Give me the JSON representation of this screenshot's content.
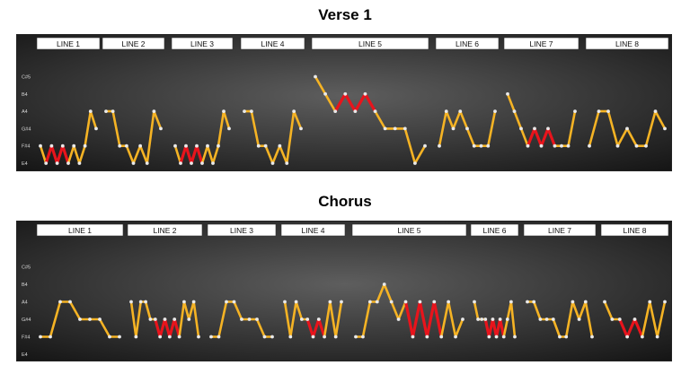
{
  "chart_data": [
    {
      "type": "line",
      "title": "Verse 1",
      "pitch_labels": [
        "E4",
        "F#4",
        "G#4",
        "A4",
        "B4",
        "C#5"
      ],
      "lines": [
        {
          "label": "LINE 1",
          "notes": [
            {
              "p": 1,
              "h": false
            },
            {
              "p": 0,
              "h": true
            },
            {
              "p": 1,
              "h": true
            },
            {
              "p": 0,
              "h": true
            },
            {
              "p": 1,
              "h": true
            },
            {
              "p": 0,
              "h": true
            },
            {
              "p": 1,
              "h": false
            },
            {
              "p": 0,
              "h": false
            },
            {
              "p": 1,
              "h": false
            },
            {
              "p": 3,
              "h": false
            },
            {
              "p": 2,
              "h": false
            }
          ]
        },
        {
          "label": "LINE 2",
          "notes": [
            {
              "p": 3,
              "h": false
            },
            {
              "p": 3,
              "h": false
            },
            {
              "p": 1,
              "h": false
            },
            {
              "p": 1,
              "h": false
            },
            {
              "p": 0,
              "h": false
            },
            {
              "p": 1,
              "h": false
            },
            {
              "p": 0,
              "h": false
            },
            {
              "p": 3,
              "h": false
            },
            {
              "p": 2,
              "h": false
            }
          ]
        },
        {
          "label": "LINE 3",
          "notes": [
            {
              "p": 1,
              "h": false
            },
            {
              "p": 0,
              "h": true
            },
            {
              "p": 1,
              "h": true
            },
            {
              "p": 0,
              "h": true
            },
            {
              "p": 1,
              "h": true
            },
            {
              "p": 0,
              "h": true
            },
            {
              "p": 1,
              "h": false
            },
            {
              "p": 0,
              "h": false
            },
            {
              "p": 1,
              "h": false
            },
            {
              "p": 3,
              "h": false
            },
            {
              "p": 2,
              "h": false
            }
          ]
        },
        {
          "label": "LINE 4",
          "notes": [
            {
              "p": 3,
              "h": false
            },
            {
              "p": 3,
              "h": false
            },
            {
              "p": 1,
              "h": false
            },
            {
              "p": 1,
              "h": false
            },
            {
              "p": 0,
              "h": false
            },
            {
              "p": 1,
              "h": false
            },
            {
              "p": 0,
              "h": false
            },
            {
              "p": 3,
              "h": false
            },
            {
              "p": 2,
              "h": false
            }
          ]
        },
        {
          "label": "LINE 5",
          "notes": [
            {
              "p": 5,
              "h": false
            },
            {
              "p": 4,
              "h": false
            },
            {
              "p": 3,
              "h": true
            },
            {
              "p": 4,
              "h": true
            },
            {
              "p": 3,
              "h": true
            },
            {
              "p": 4,
              "h": true
            },
            {
              "p": 3,
              "h": true
            },
            {
              "p": 2,
              "h": false
            },
            {
              "p": 2,
              "h": false
            },
            {
              "p": 2,
              "h": false
            },
            {
              "p": 0,
              "h": false
            },
            {
              "p": 1,
              "h": false
            }
          ]
        },
        {
          "label": "LINE 6",
          "notes": [
            {
              "p": 1,
              "h": false
            },
            {
              "p": 3,
              "h": false
            },
            {
              "p": 2,
              "h": false
            },
            {
              "p": 3,
              "h": false
            },
            {
              "p": 2,
              "h": false
            },
            {
              "p": 1,
              "h": false
            },
            {
              "p": 1,
              "h": false
            },
            {
              "p": 1,
              "h": false
            },
            {
              "p": 3,
              "h": false
            }
          ]
        },
        {
          "label": "LINE 7",
          "notes": [
            {
              "p": 4,
              "h": false
            },
            {
              "p": 3,
              "h": false
            },
            {
              "p": 2,
              "h": false
            },
            {
              "p": 1,
              "h": true
            },
            {
              "p": 2,
              "h": true
            },
            {
              "p": 1,
              "h": true
            },
            {
              "p": 2,
              "h": true
            },
            {
              "p": 1,
              "h": true
            },
            {
              "p": 1,
              "h": false
            },
            {
              "p": 1,
              "h": false
            },
            {
              "p": 3,
              "h": false
            }
          ]
        },
        {
          "label": "LINE 8",
          "notes": [
            {
              "p": 1,
              "h": false
            },
            {
              "p": 3,
              "h": false
            },
            {
              "p": 3,
              "h": false
            },
            {
              "p": 1,
              "h": false
            },
            {
              "p": 2,
              "h": false
            },
            {
              "p": 1,
              "h": false
            },
            {
              "p": 1,
              "h": false
            },
            {
              "p": 3,
              "h": false
            },
            {
              "p": 2,
              "h": false
            }
          ]
        }
      ]
    },
    {
      "type": "line",
      "title": "Chorus",
      "pitch_labels": [
        "E4",
        "F#4",
        "G#4",
        "A4",
        "B4",
        "C#5"
      ],
      "lines": [
        {
          "label": "LINE 1",
          "notes": [
            {
              "p": 1,
              "h": false
            },
            {
              "p": 1,
              "h": false
            },
            {
              "p": 3,
              "h": false
            },
            {
              "p": 3,
              "h": false
            },
            {
              "p": 2,
              "h": false
            },
            {
              "p": 2,
              "h": false
            },
            {
              "p": 2,
              "h": false
            },
            {
              "p": 1,
              "h": false
            },
            {
              "p": 1,
              "h": false
            }
          ]
        },
        {
          "label": "LINE 2",
          "notes": [
            {
              "p": 3,
              "h": false
            },
            {
              "p": 1,
              "h": false
            },
            {
              "p": 3,
              "h": false
            },
            {
              "p": 3,
              "h": false
            },
            {
              "p": 2,
              "h": false
            },
            {
              "p": 2,
              "h": true
            },
            {
              "p": 1,
              "h": true
            },
            {
              "p": 2,
              "h": true
            },
            {
              "p": 1,
              "h": true
            },
            {
              "p": 2,
              "h": true
            },
            {
              "p": 1,
              "h": true
            },
            {
              "p": 3,
              "h": false
            },
            {
              "p": 2,
              "h": false
            },
            {
              "p": 3,
              "h": false
            },
            {
              "p": 1,
              "h": false
            }
          ]
        },
        {
          "label": "LINE 3",
          "notes": [
            {
              "p": 1,
              "h": false
            },
            {
              "p": 1,
              "h": false
            },
            {
              "p": 3,
              "h": false
            },
            {
              "p": 3,
              "h": false
            },
            {
              "p": 2,
              "h": false
            },
            {
              "p": 2,
              "h": false
            },
            {
              "p": 2,
              "h": false
            },
            {
              "p": 1,
              "h": false
            },
            {
              "p": 1,
              "h": false
            }
          ]
        },
        {
          "label": "LINE 4",
          "notes": [
            {
              "p": 3,
              "h": false
            },
            {
              "p": 1,
              "h": false
            },
            {
              "p": 3,
              "h": false
            },
            {
              "p": 2,
              "h": false
            },
            {
              "p": 2,
              "h": true
            },
            {
              "p": 1,
              "h": true
            },
            {
              "p": 2,
              "h": true
            },
            {
              "p": 1,
              "h": true
            },
            {
              "p": 3,
              "h": false
            },
            {
              "p": 1,
              "h": false
            },
            {
              "p": 3,
              "h": false
            }
          ]
        },
        {
          "label": "LINE 5",
          "notes": [
            {
              "p": 1,
              "h": false
            },
            {
              "p": 1,
              "h": false
            },
            {
              "p": 3,
              "h": false
            },
            {
              "p": 3,
              "h": false
            },
            {
              "p": 4,
              "h": false
            },
            {
              "p": 3,
              "h": false
            },
            {
              "p": 2,
              "h": false
            },
            {
              "p": 3,
              "h": true
            },
            {
              "p": 1,
              "h": true
            },
            {
              "p": 3,
              "h": true
            },
            {
              "p": 1,
              "h": true
            },
            {
              "p": 3,
              "h": true
            },
            {
              "p": 1,
              "h": true
            },
            {
              "p": 3,
              "h": false
            },
            {
              "p": 1,
              "h": false
            },
            {
              "p": 2,
              "h": false
            }
          ]
        },
        {
          "label": "LINE 6",
          "notes": [
            {
              "p": 3,
              "h": false
            },
            {
              "p": 2,
              "h": false
            },
            {
              "p": 2,
              "h": false
            },
            {
              "p": 2,
              "h": true
            },
            {
              "p": 1,
              "h": true
            },
            {
              "p": 2,
              "h": true
            },
            {
              "p": 1,
              "h": true
            },
            {
              "p": 2,
              "h": true
            },
            {
              "p": 1,
              "h": true
            },
            {
              "p": 2,
              "h": false
            },
            {
              "p": 3,
              "h": false
            },
            {
              "p": 1,
              "h": false
            }
          ]
        },
        {
          "label": "LINE 7",
          "notes": [
            {
              "p": 3,
              "h": false
            },
            {
              "p": 3,
              "h": false
            },
            {
              "p": 2,
              "h": false
            },
            {
              "p": 2,
              "h": false
            },
            {
              "p": 2,
              "h": false
            },
            {
              "p": 1,
              "h": false
            },
            {
              "p": 1,
              "h": false
            },
            {
              "p": 3,
              "h": false
            },
            {
              "p": 2,
              "h": false
            },
            {
              "p": 3,
              "h": false
            },
            {
              "p": 1,
              "h": false
            }
          ]
        },
        {
          "label": "LINE 8",
          "notes": [
            {
              "p": 3,
              "h": false
            },
            {
              "p": 2,
              "h": false
            },
            {
              "p": 2,
              "h": true
            },
            {
              "p": 1,
              "h": true
            },
            {
              "p": 2,
              "h": true
            },
            {
              "p": 1,
              "h": true
            },
            {
              "p": 3,
              "h": false
            },
            {
              "p": 1,
              "h": false
            },
            {
              "p": 3,
              "h": false
            }
          ]
        }
      ]
    }
  ],
  "colors": {
    "line": "#f5b324",
    "highlight": "#e8141c",
    "note": "#e9e9e9",
    "label_box_bg": "#ffffff",
    "pitch_label": "#d9d9d9"
  }
}
